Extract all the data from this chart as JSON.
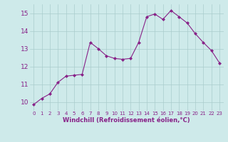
{
  "x": [
    0,
    1,
    2,
    3,
    4,
    5,
    6,
    7,
    8,
    9,
    10,
    11,
    12,
    13,
    14,
    15,
    16,
    17,
    18,
    19,
    20,
    21,
    22,
    23
  ],
  "y": [
    9.85,
    10.2,
    10.45,
    11.1,
    11.45,
    11.5,
    11.55,
    13.35,
    13.0,
    12.6,
    12.45,
    12.4,
    12.45,
    13.35,
    14.8,
    14.95,
    14.65,
    15.15,
    14.8,
    14.45,
    13.85,
    13.35,
    12.9,
    12.2
  ],
  "line_color": "#882288",
  "marker": "D",
  "marker_size": 2,
  "bg_color": "#ceeaea",
  "grid_color": "#aacccc",
  "xlabel": "Windchill (Refroidissement éolien,°C)",
  "xlabel_color": "#882288",
  "tick_color": "#882288",
  "ylim": [
    9.5,
    15.5
  ],
  "xlim": [
    -0.5,
    23.5
  ],
  "yticks": [
    10,
    11,
    12,
    13,
    14,
    15
  ],
  "xticks": [
    0,
    1,
    2,
    3,
    4,
    5,
    6,
    7,
    8,
    9,
    10,
    11,
    12,
    13,
    14,
    15,
    16,
    17,
    18,
    19,
    20,
    21,
    22,
    23
  ],
  "xlabel_fontsize": 6.0,
  "xtick_fontsize": 5.0,
  "ytick_fontsize": 6.5
}
